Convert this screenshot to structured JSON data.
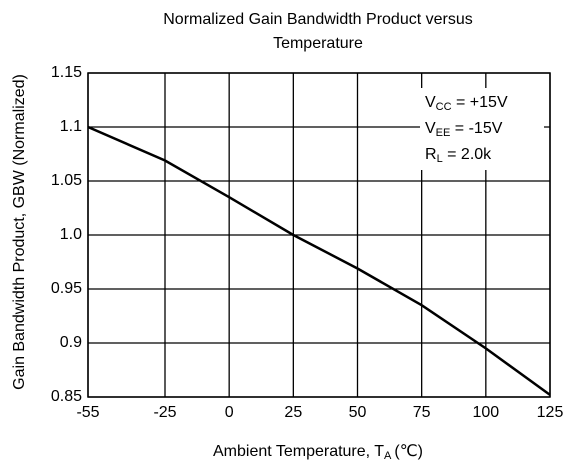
{
  "chart_data": {
    "type": "line",
    "title": [
      "Normalized Gain Bandwidth Product versus",
      "Temperature"
    ],
    "xlabel": {
      "main": "Ambient Temperature, T",
      "sub": "A",
      "unit": "(℃)"
    },
    "ylabel": "Gain Bandwidth Product, GBW (Normalized)",
    "x": [
      -55,
      -25,
      0,
      25,
      50,
      75,
      100,
      125
    ],
    "values": [
      1.1,
      1.069,
      1.035,
      1.0,
      0.969,
      0.935,
      0.895,
      0.852
    ],
    "color": "#000000",
    "xlim": [
      -55,
      125
    ],
    "xticks": [
      -55,
      -25,
      0,
      25,
      50,
      75,
      100,
      125
    ],
    "ylim": [
      0.85,
      1.15
    ],
    "yticks": [
      0.85,
      0.9,
      0.95,
      {
        "value": 1,
        "label": "1.0"
      },
      1.05,
      1.1,
      1.15
    ],
    "grid": true,
    "annotations": [
      {
        "main": "V",
        "sub": "CC",
        "rest": " = +15V"
      },
      {
        "main": "V",
        "sub": "EE",
        "rest": " = -15V"
      },
      {
        "main": "R",
        "sub": "L",
        "rest": " = 2.0k"
      }
    ]
  }
}
